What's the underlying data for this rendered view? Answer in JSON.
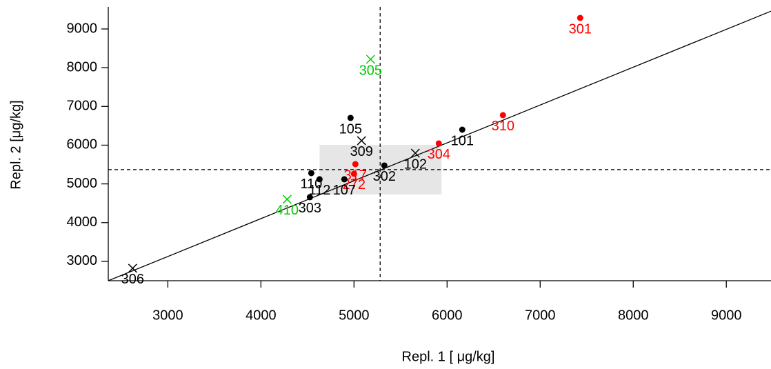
{
  "chart_data": {
    "type": "scatter",
    "x_label": "Repl. 1 [ μg/kg]",
    "y_label": "Repl. 2 [μg/kg]",
    "xlim": [
      2360,
      9480
    ],
    "ylim": [
      2500,
      9570
    ],
    "xticks": [
      3000,
      4000,
      5000,
      6000,
      7000,
      8000,
      9000
    ],
    "yticks": [
      3000,
      4000,
      5000,
      6000,
      7000,
      8000,
      9000
    ],
    "points": [
      {
        "label": "301",
        "x": 7430,
        "y": 9285,
        "color": "#ff0000",
        "marker": "dot"
      },
      {
        "label": "305",
        "x": 5178,
        "y": 8217,
        "color": "#00cc00",
        "marker": "cross"
      },
      {
        "label": "310",
        "x": 6600,
        "y": 6775,
        "color": "#ff0000",
        "marker": "dot"
      },
      {
        "label": "101",
        "x": 6163,
        "y": 6400,
        "color": "#000000",
        "marker": "dot"
      },
      {
        "label": "105",
        "x": 4963,
        "y": 6703,
        "color": "#000000",
        "marker": "dot"
      },
      {
        "label": "309",
        "x": 5081,
        "y": 6116,
        "color": "#000000",
        "marker": "cross"
      },
      {
        "label": "304",
        "x": 5911,
        "y": 6045,
        "color": "#ff0000",
        "marker": "dot"
      },
      {
        "label": "102",
        "x": 5659,
        "y": 5795,
        "color": "#000000",
        "marker": "cross"
      },
      {
        "label": "302",
        "x": 5326,
        "y": 5475,
        "color": "#000000",
        "marker": "dot"
      },
      {
        "label": "317",
        "x": 5015,
        "y": 5510,
        "color": "#ff0000",
        "marker": "dot"
      },
      {
        "label": "272",
        "x": 5000,
        "y": 5261,
        "color": "#ff0000",
        "marker": "dot"
      },
      {
        "label": "110",
        "x": 4541,
        "y": 5279,
        "color": "#000000",
        "marker": "dot"
      },
      {
        "label": "112",
        "x": 4630,
        "y": 5119,
        "color": "#000000",
        "marker": "dot"
      },
      {
        "label": "107",
        "x": 4896,
        "y": 5119,
        "color": "#000000",
        "marker": "dot"
      },
      {
        "label": "303",
        "x": 4526,
        "y": 4656,
        "color": "#000000",
        "marker": "dot"
      },
      {
        "label": "410",
        "x": 4281,
        "y": 4603,
        "color": "#00cc00",
        "marker": "cross"
      },
      {
        "label": "306",
        "x": 2622,
        "y": 2822,
        "color": "#000000",
        "marker": "cross"
      }
    ],
    "median_x": 5281,
    "median_y": 5368,
    "target_box": {
      "x": [
        4630,
        5941
      ],
      "y": [
        4727,
        6009
      ],
      "color": "#e6e6e6"
    },
    "reference_line": {
      "x": [
        2360,
        9480
      ],
      "y": [
        2500,
        9460
      ]
    }
  }
}
